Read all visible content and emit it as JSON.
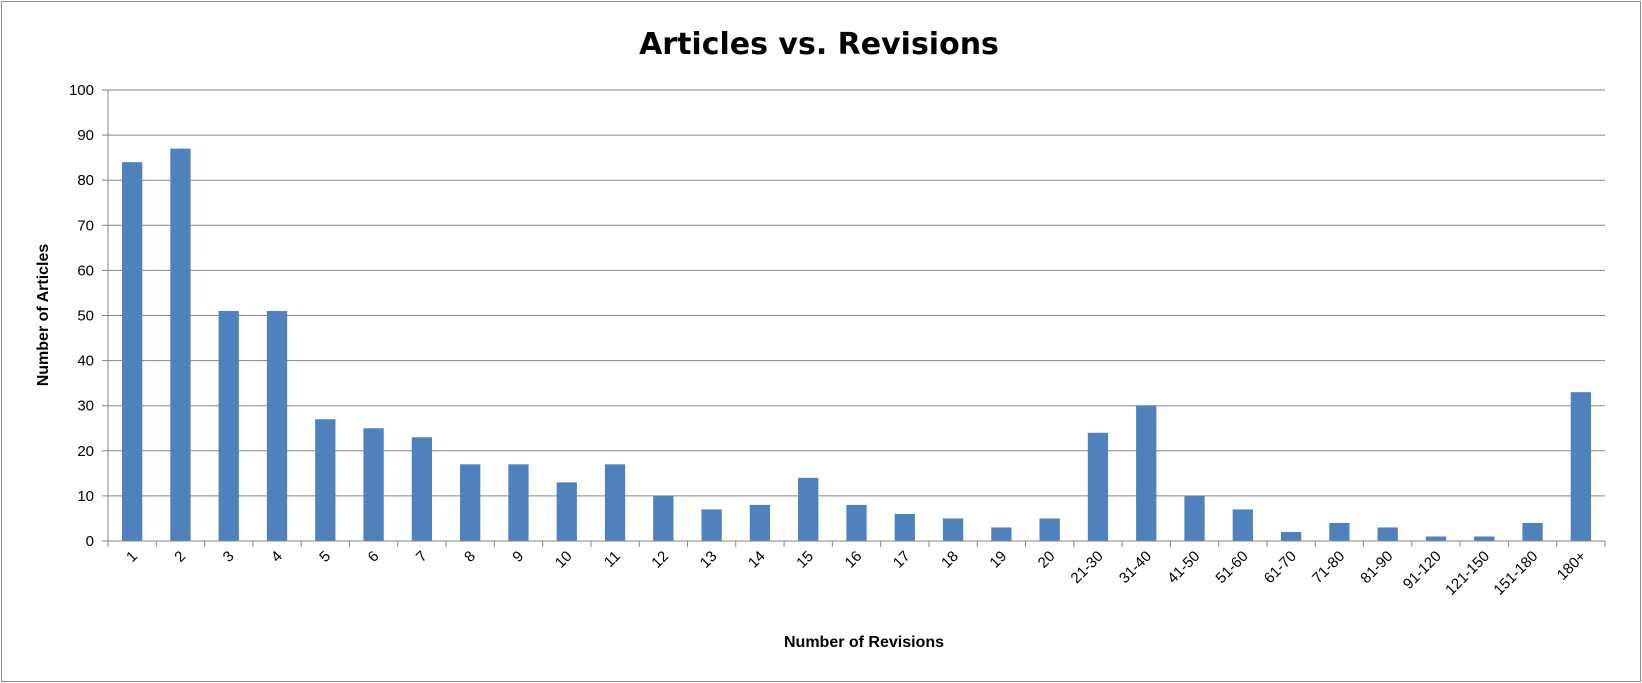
{
  "chart_data": {
    "type": "bar",
    "title": "Articles vs. Revisions",
    "xlabel": "Number of Revisions",
    "ylabel": "Number of Articles",
    "categories": [
      "1",
      "2",
      "3",
      "4",
      "5",
      "6",
      "7",
      "8",
      "9",
      "10",
      "11",
      "12",
      "13",
      "14",
      "15",
      "16",
      "17",
      "18",
      "19",
      "20",
      "21-30",
      "31-40",
      "41-50",
      "51-60",
      "61-70",
      "71-80",
      "81-90",
      "91-120",
      "121-150",
      "151-180",
      "180+"
    ],
    "values": [
      84,
      87,
      51,
      51,
      27,
      25,
      23,
      17,
      17,
      13,
      17,
      10,
      7,
      8,
      14,
      8,
      6,
      5,
      3,
      5,
      24,
      30,
      10,
      7,
      2,
      4,
      3,
      1,
      1,
      4,
      33
    ],
    "ylim": [
      0,
      100
    ],
    "yticks": [
      0,
      10,
      20,
      30,
      40,
      50,
      60,
      70,
      80,
      90,
      100
    ],
    "grid": true,
    "legend": "none",
    "bar_color": "#4f81bd"
  }
}
